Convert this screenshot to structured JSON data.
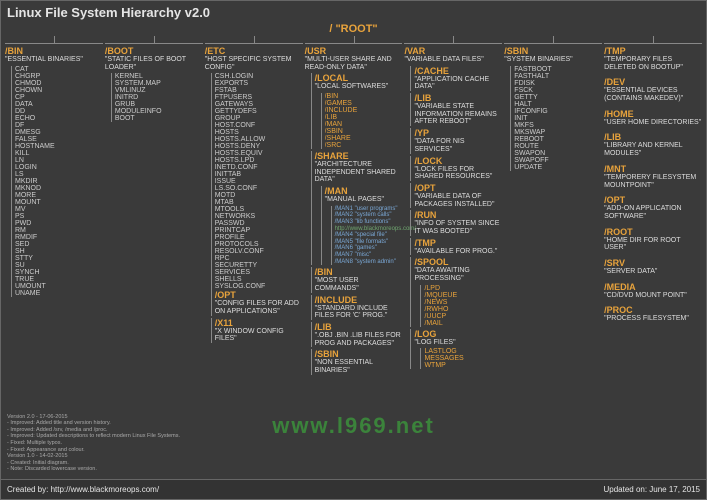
{
  "meta": {
    "title": "Linux File System Hierarchy v2.0",
    "root_label": "/ \"ROOT\"",
    "colors": {
      "background": "#3a3a3a",
      "foreground": "#e5e5e5",
      "accent": "#e8a33c",
      "line": "#888888"
    },
    "font_family": "Arial",
    "title_fontsize": 13,
    "dir_fontsize": 9,
    "desc_fontsize": 7,
    "item_fontsize": 7,
    "created_by": "Created by: http://www.blackmoreops.com/",
    "updated": "Updated on: June 17, 2015",
    "watermark": "www.l969.net"
  },
  "history_lines": [
    "Version 2.0 - 17-06-2015",
    "- Improved: Added title and version history.",
    "- Improved: Added /srv, /media and /proc.",
    "- Improved: Updated descriptions to reflect modern Linux File Systems.",
    "- Fixed: Multiple typos.",
    "- Fixed: Appearance and colour.",
    "Version 1.0 - 14-02-2015",
    "- Created: Initial diagram.",
    "- Note: Discarded lowercase version."
  ],
  "columns": [
    {
      "dir": "/BIN",
      "desc": "\"ESSENTIAL BINARIES\"",
      "items": [
        "CAT",
        "CHGRP",
        "CHMOD",
        "CHOWN",
        "CP",
        "DATA",
        "DD",
        "ECHO",
        "DF",
        "DMESG",
        "FALSE",
        "HOSTNAME",
        "KILL",
        "LN",
        "LOGIN",
        "LS",
        "MKDIR",
        "MKNOD",
        "MORE",
        "MOUNT",
        "MV",
        "PS",
        "PWD",
        "RM",
        "RMDIF",
        "SED",
        "SH",
        "STTY",
        "SU",
        "SYNCH",
        "TRUE",
        "UMOUNT",
        "UNAME"
      ]
    },
    {
      "dir": "/BOOT",
      "desc": "\"STATIC FILES OF BOOT LOADER\"",
      "items": [
        "KERNEL",
        "SYSTEM.MAP",
        "VMLINUZ",
        "INITRD",
        "GRUB",
        "MODULEINFO",
        "BOOT"
      ]
    },
    {
      "dir": "/ETC",
      "desc": "\"HOST SPECIFIC SYSTEM CONFIG\"",
      "items": [
        "CSH.LOGIN",
        "EXPORTS",
        "FSTAB",
        "FTPUSERS",
        "GATEWAYS",
        "GETTYDEFS",
        "GROUP",
        "HOST.CONF",
        "HOSTS",
        "HOSTS.ALLOW",
        "HOSTS.DENY",
        "HOSTS.EQUIV",
        "HOSTS.LPD",
        "INETD.CONF",
        "INITTAB",
        "ISSUE",
        "LS.SO.CONF",
        "MOTD",
        "MTAB",
        "MTOOLS",
        "NETWORKS",
        "PASSWD",
        "PRINTCAP",
        "PROFILE",
        "PROTOCOLS",
        "RESOLV.CONF",
        "RPC",
        "SECURETTY",
        "SERVICES",
        "SHELLS",
        "SYSLOG.CONF"
      ],
      "subs": [
        {
          "dir": "/OPT",
          "desc": "\"CONFIG FILES FOR ADD ON APPLICATIONS\""
        },
        {
          "dir": "/X11",
          "desc": "\"X WINDOW CONFIG FILES\""
        }
      ]
    },
    {
      "dir": "/USR",
      "desc": "\"MULTI-USER SHARE AND READ-ONLY DATA\"",
      "subs": [
        {
          "dir": "/LOCAL",
          "desc": "\"LOCAL SOFTWARES\"",
          "items": [
            "/BIN",
            "/GAMES",
            "/INCLUDE",
            "/LIB",
            "/MAN",
            "/SBIN",
            "/SHARE",
            "/SRC"
          ],
          "items_accent": true
        },
        {
          "dir": "/SHARE",
          "desc": "\"ARCHITECTURE INDEPENDENT SHARED DATA\"",
          "subs": [
            {
              "dir": "/MAN",
              "desc": "\"MANUAL PAGES\"",
              "man_notes": [
                "/MAN1 \"user programs\"",
                "/MAN2 \"system calls\"",
                "/MAN3 \"lib functions\"",
                "/MAN4 \"special file\"",
                "/MAN5 \"file formats\"",
                "/MAN6 \"games\"",
                "/MAN7 \"misc\"",
                "/MAN8 \"system admin\""
              ],
              "man_center": "http://www.blackmoreops.com/"
            }
          ]
        },
        {
          "dir": "/BIN",
          "desc": "\"MOST USER COMMANDS\""
        },
        {
          "dir": "/INCLUDE",
          "desc": "\"STANDARD INCLUDE FILES FOR 'C' PROG.\""
        },
        {
          "dir": "/LIB",
          "desc": "\".OBJ .BIN .LIB FILES FOR PROG AND PACKAGES\""
        },
        {
          "dir": "/SBIN",
          "desc": "\"NON ESSENTIAL BINARIES\""
        }
      ]
    },
    {
      "dir": "/VAR",
      "desc": "\"VARIABLE DATA FILES\"",
      "subs": [
        {
          "dir": "/CACHE",
          "desc": "\"APPLICATION CACHE DATA\""
        },
        {
          "dir": "/LIB",
          "desc": "\"VARIABLE STATE INFORMATION REMAINS AFTER REBOOT\""
        },
        {
          "dir": "/YP",
          "desc": "\"DATA FOR NIS SERVICES\""
        },
        {
          "dir": "/LOCK",
          "desc": "\"LOCK FILES FOR SHARED RESOURCES\""
        },
        {
          "dir": "/OPT",
          "desc": "\"VARIABLE DATA OF PACKAGES INSTALLED\""
        },
        {
          "dir": "/RUN",
          "desc": "\"INFO OF SYSTEM SINCE IT WAS BOOTED\""
        },
        {
          "dir": "/TMP",
          "desc": "\"AVAILABLE FOR PROG.\""
        },
        {
          "dir": "/SPOOL",
          "desc": "\"DATA AWAITING PROCESSING\"",
          "items": [
            "/LPD",
            "/MQUEUE",
            "/NEWS",
            "/RWHO",
            "/UUCP",
            "/MAIL"
          ],
          "items_accent": true
        },
        {
          "dir": "/LOG",
          "desc": "\"LOG FILES\"",
          "items": [
            "LASTLOG",
            "MESSAGES",
            "WTMP"
          ],
          "items_accent": true
        }
      ]
    },
    {
      "dir": "/SBIN",
      "desc": "\"SYSTEM BINARIES\"",
      "items": [
        "FASTBOOT",
        "FASTHALT",
        "FDISK",
        "FSCK",
        "GETTY",
        "HALT",
        "IFCONFIG",
        "INIT",
        "MKFS",
        "MKSWAP",
        "REBOOT",
        "ROUTE",
        "SWAPON",
        "SWAPOFF",
        "UPDATE"
      ]
    },
    {
      "groups": [
        {
          "dir": "/TMP",
          "desc": "\"TEMPORARY FILES DELETED ON BOOTUP\""
        },
        {
          "dir": "/DEV",
          "desc": "\"ESSENTIAL DEVICES (CONTAINS MAKEDEV)\""
        },
        {
          "dir": "/HOME",
          "desc": "\"USER HOME DIRECTORIES\""
        },
        {
          "dir": "/LIB",
          "desc": "\"LIBRARY AND KERNEL MODULES\""
        },
        {
          "dir": "/MNT",
          "desc": "\"TEMPORERY FILESYSTEM MOUNTPOINT\""
        },
        {
          "dir": "/OPT",
          "desc": "\"ADD-ON APPLICATION SOFTWARE\""
        },
        {
          "dir": "/ROOT",
          "desc": "\"HOME DIR FOR ROOT USER\""
        },
        {
          "dir": "/SRV",
          "desc": "\"SERVER DATA\""
        },
        {
          "dir": "/MEDIA",
          "desc": "\"CD/DVD MOUNT POINT\""
        },
        {
          "dir": "/PROC",
          "desc": "\"PROCESS FILESYSTEM\""
        }
      ]
    }
  ]
}
